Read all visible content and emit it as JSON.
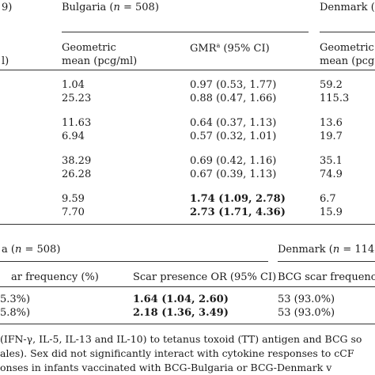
{
  "table1": {
    "left_header_fragment": "9)",
    "bulgaria_header": {
      "prefix": "Bulgaria (",
      "n_var": "n",
      "suffix": " = 508)"
    },
    "denmark_header": "Denmark (",
    "left_sub_fragment": "l)",
    "geo_mean_label_1": "Geometric",
    "geo_mean_label_2": "mean (pcg/ml)",
    "gmr_label": {
      "main": "GMR",
      "sup": "a",
      "rest": " (95% CI)"
    },
    "denmark_geo_label_1": "Geometric",
    "denmark_geo_label_2": "mean (pcg",
    "rows": [
      {
        "bg_mean": "1.04",
        "gmr": "0.97 (0.53, 1.77)",
        "gmr_bold": false,
        "dk_mean": "59.2"
      },
      {
        "bg_mean": "25.23",
        "gmr": "0.88 (0.47, 1.66)",
        "gmr_bold": false,
        "dk_mean": "115.3"
      },
      {
        "bg_mean": "11.63",
        "gmr": "0.64 (0.37, 1.13)",
        "gmr_bold": false,
        "dk_mean": "13.6"
      },
      {
        "bg_mean": "6.94",
        "gmr": "0.57 (0.32, 1.01)",
        "gmr_bold": false,
        "dk_mean": "19.7"
      },
      {
        "bg_mean": "38.29",
        "gmr": "0.69 (0.42, 1.16)",
        "gmr_bold": false,
        "dk_mean": "35.1"
      },
      {
        "bg_mean": "26.28",
        "gmr": "0.67 (0.39, 1.13)",
        "gmr_bold": false,
        "dk_mean": "74.9"
      },
      {
        "bg_mean": "9.59",
        "gmr": "1.74 (1.09, 2.78)",
        "gmr_bold": true,
        "dk_mean": "6.7"
      },
      {
        "bg_mean": "7.70",
        "gmr": "2.73 (1.71, 4.36)",
        "gmr_bold": true,
        "dk_mean": "15.9"
      }
    ]
  },
  "table2": {
    "bulgaria_header": {
      "prefix": "a (",
      "n_var": "n",
      "suffix": " = 508)"
    },
    "denmark_header": {
      "prefix": "Denmark (",
      "n_var": "n",
      "suffix": " = 114)"
    },
    "col_scar_freq": "ar frequency (%)",
    "col_scar_or": "Scar presence OR (95% CI)",
    "col_dk_scar": "BCG scar frequenc",
    "rows": [
      {
        "left": "5.3%)",
        "or": "1.64 (1.04, 2.60)",
        "dk": "53 (93.0%)"
      },
      {
        "left": "5.8%)",
        "or": "2.18 (1.36, 3.49)",
        "dk": "53 (93.0%)"
      }
    ]
  },
  "caption": {
    "line1": "(IFN-γ, IL-5, IL-13 and IL-10) to tetanus toxoid (TT) antigen and BCG so",
    "line2": "ales). Sex did not significantly interact with cytokine responses to cCF",
    "line3": "onses in infants vaccinated with BCG-Bulgaria or BCG-Denmark v"
  }
}
